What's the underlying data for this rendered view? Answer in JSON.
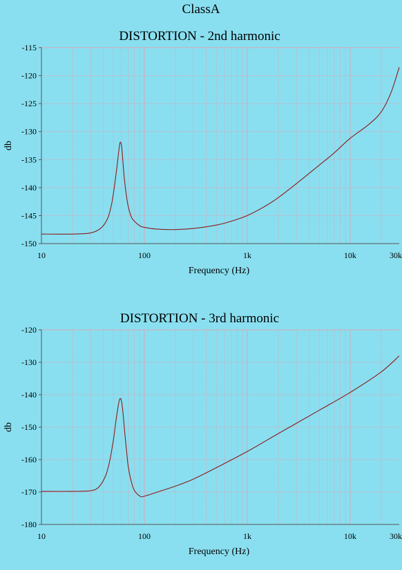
{
  "page_title": "ClassA",
  "chart_data": [
    {
      "type": "line",
      "title": "DISTORTION - 2nd harmonic",
      "xlabel": "Frequency (Hz)",
      "ylabel": "db",
      "x_scale": "log",
      "xlim": [
        10,
        30000
      ],
      "ylim": [
        -150,
        -115
      ],
      "grid": true,
      "x_ticks": [
        {
          "value": 10,
          "label": "10"
        },
        {
          "value": 100,
          "label": "100"
        },
        {
          "value": 1000,
          "label": "1k"
        },
        {
          "value": 10000,
          "label": "10k"
        },
        {
          "value": 30000,
          "label": "30k"
        }
      ],
      "y_ticks": [
        {
          "value": -115,
          "label": "-115"
        },
        {
          "value": -120,
          "label": "-120"
        },
        {
          "value": -125,
          "label": "-125"
        },
        {
          "value": -130,
          "label": "-130"
        },
        {
          "value": -135,
          "label": "-135"
        },
        {
          "value": -140,
          "label": "-140"
        },
        {
          "value": -145,
          "label": "-145"
        },
        {
          "value": -150,
          "label": "-150"
        }
      ],
      "series": [
        {
          "color": "#8b1a1a",
          "x": [
            10,
            20,
            30,
            38,
            44,
            48,
            51,
            54,
            56,
            58,
            60,
            62,
            64,
            67,
            70,
            75,
            80,
            90,
            100,
            130,
            200,
            300,
            500,
            700,
            1000,
            1500,
            2000,
            3000,
            5000,
            7000,
            10000,
            15000,
            20000,
            25000,
            30000
          ],
          "y": [
            -148.3,
            -148.3,
            -148.1,
            -147.2,
            -145.5,
            -143.0,
            -140.0,
            -136.5,
            -134.0,
            -132.0,
            -132.5,
            -135.5,
            -138.5,
            -141.5,
            -143.5,
            -145.3,
            -146.0,
            -146.8,
            -147.1,
            -147.4,
            -147.5,
            -147.3,
            -146.7,
            -146.0,
            -145.0,
            -143.3,
            -141.8,
            -139.3,
            -136.0,
            -133.8,
            -131.2,
            -128.8,
            -126.5,
            -123.0,
            -118.5
          ]
        }
      ]
    },
    {
      "type": "line",
      "title": "DISTORTION - 3rd harmonic",
      "xlabel": "Frequency (Hz)",
      "ylabel": "db",
      "x_scale": "log",
      "xlim": [
        10,
        30000
      ],
      "ylim": [
        -180,
        -120
      ],
      "grid": true,
      "x_ticks": [
        {
          "value": 10,
          "label": "10"
        },
        {
          "value": 100,
          "label": "100"
        },
        {
          "value": 1000,
          "label": "1k"
        },
        {
          "value": 10000,
          "label": "10k"
        },
        {
          "value": 30000,
          "label": "30k"
        }
      ],
      "y_ticks": [
        {
          "value": -120,
          "label": "-120"
        },
        {
          "value": -130,
          "label": "-130"
        },
        {
          "value": -140,
          "label": "-140"
        },
        {
          "value": -150,
          "label": "-150"
        },
        {
          "value": -160,
          "label": "-160"
        },
        {
          "value": -170,
          "label": "-170"
        },
        {
          "value": -180,
          "label": "-180"
        }
      ],
      "series": [
        {
          "color": "#8b1a1a",
          "x": [
            10,
            20,
            30,
            36,
            42,
            46,
            50,
            53,
            56,
            58,
            60,
            62,
            64,
            67,
            70,
            75,
            80,
            90,
            100,
            150,
            200,
            300,
            500,
            1000,
            2000,
            5000,
            10000,
            20000,
            30000
          ],
          "y": [
            -169.8,
            -169.8,
            -169.6,
            -168.5,
            -165.0,
            -160.5,
            -154.0,
            -148.0,
            -143.0,
            -141.2,
            -142.0,
            -145.5,
            -150.5,
            -157.0,
            -162.5,
            -167.0,
            -169.5,
            -171.2,
            -171.3,
            -169.5,
            -168.2,
            -166.0,
            -162.5,
            -157.5,
            -152.0,
            -144.8,
            -139.3,
            -133.0,
            -128.0
          ]
        }
      ]
    }
  ]
}
